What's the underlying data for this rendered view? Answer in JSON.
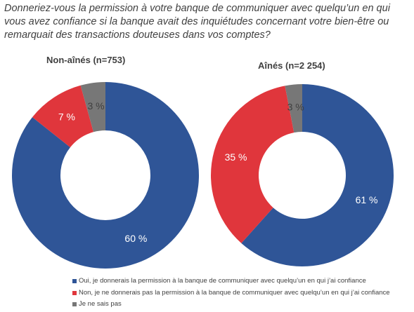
{
  "question": "Donneriez-vous la permission à votre banque de communiquer avec quelqu’un en qui vous avez confiance si la banque avait des inquiétudes concernant votre bien-être ou remarquait des transactions douteuses dans vos comptes?",
  "colors": {
    "oui": "#2f5597",
    "non": "#e0363c",
    "nsp": "#777777",
    "label_light": "#ffffff",
    "label_dark": "#404040"
  },
  "legend": [
    {
      "key": "oui",
      "label": "Oui, je donnerais la permission à la banque de communiquer avec quelqu’un en qui j’ai confiance"
    },
    {
      "key": "non",
      "label": "Non, je ne donnerais pas la permission à la banque de communiquer avec quelqu’un en qui j’ai confiance"
    },
    {
      "key": "nsp",
      "label": "Je ne sais pas"
    }
  ],
  "chart_data": [
    {
      "type": "pie",
      "title": "Non-aînés (n=753)",
      "categories": [
        "Oui, je donnerais la permission à la banque de communiquer avec quelqu’un en qui j’ai confiance",
        "Non, je ne donnerais pas la permission à la banque de communiquer avec quelqu’un en qui j’ai confiance",
        "Je ne sais pas"
      ],
      "values": [
        60,
        7,
        3
      ],
      "labels": [
        "60 %",
        "7 %",
        "3 %"
      ],
      "keys": [
        "oui",
        "non",
        "nsp"
      ],
      "hole": true
    },
    {
      "type": "pie",
      "title": "Aînés (n=2 254)",
      "categories": [
        "Oui, je donnerais la permission à la banque de communiquer avec quelqu’un en qui j’ai confiance",
        "Non, je ne donnerais pas la permission à la banque de communiquer avec quelqu’un en qui j’ai confiance",
        "Je ne sais pas"
      ],
      "values": [
        61,
        35,
        3
      ],
      "labels": [
        "61 %",
        "35 %",
        "3 %"
      ],
      "keys": [
        "oui",
        "non",
        "nsp"
      ],
      "hole": true
    }
  ]
}
